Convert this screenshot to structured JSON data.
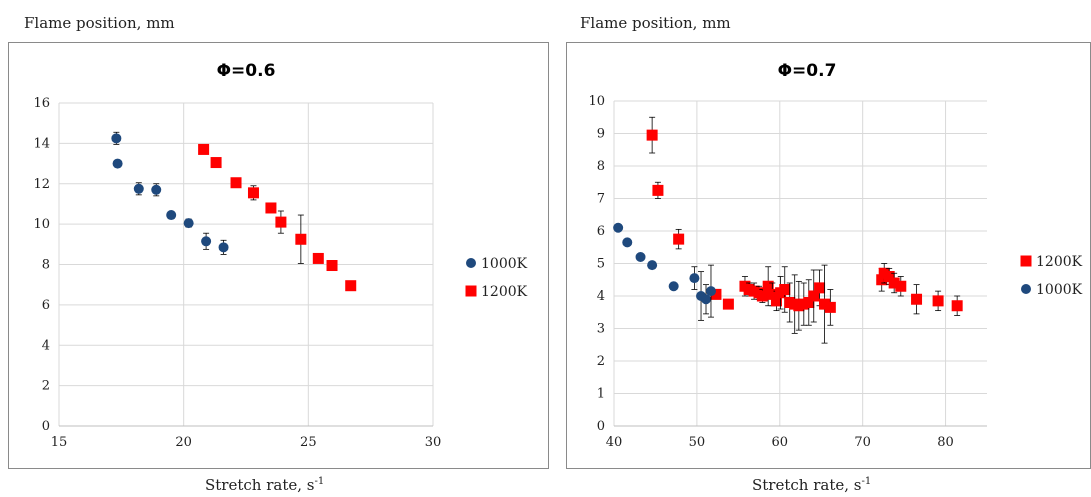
{
  "chart_data": [
    {
      "type": "scatter",
      "title": "Φ=0.6",
      "ylabel": "Flame position, mm",
      "xlabel": "Stretch rate, s",
      "xlabel_sup": "-1",
      "xlim": [
        15,
        30
      ],
      "ylim": [
        0,
        16
      ],
      "xticks": [
        15,
        20,
        25,
        30
      ],
      "yticks": [
        0,
        2,
        4,
        6,
        8,
        10,
        12,
        14,
        16
      ],
      "grid": true,
      "legend_position": "right",
      "series": [
        {
          "name": "1000K",
          "marker": "circle",
          "color": "#1f497d",
          "points": [
            {
              "x": 17.3,
              "y": 14.25,
              "err": 0.3
            },
            {
              "x": 17.35,
              "y": 13.0,
              "err": 0
            },
            {
              "x": 18.2,
              "y": 11.75,
              "err": 0.3
            },
            {
              "x": 18.9,
              "y": 11.7,
              "err": 0.3
            },
            {
              "x": 19.5,
              "y": 10.45,
              "err": 0
            },
            {
              "x": 20.2,
              "y": 10.05,
              "err": 0.2
            },
            {
              "x": 20.9,
              "y": 9.15,
              "err": 0.4
            },
            {
              "x": 21.6,
              "y": 8.85,
              "err": 0.35
            }
          ]
        },
        {
          "name": "1200K",
          "marker": "square",
          "color": "#ff0000",
          "points": [
            {
              "x": 20.8,
              "y": 13.7,
              "err": 0
            },
            {
              "x": 21.3,
              "y": 13.05,
              "err": 0
            },
            {
              "x": 22.1,
              "y": 12.05,
              "err": 0
            },
            {
              "x": 22.8,
              "y": 11.55,
              "err": 0.35
            },
            {
              "x": 23.5,
              "y": 10.8,
              "err": 0
            },
            {
              "x": 23.9,
              "y": 10.1,
              "err": 0.55
            },
            {
              "x": 24.7,
              "y": 9.25,
              "err": 1.2
            },
            {
              "x": 25.4,
              "y": 8.3,
              "err": 0
            },
            {
              "x": 25.95,
              "y": 7.95,
              "err": 0.2
            },
            {
              "x": 26.7,
              "y": 6.95,
              "err": 0
            }
          ]
        }
      ],
      "legend": [
        "1000K",
        "1200K"
      ]
    },
    {
      "type": "scatter",
      "title": "Φ=0.7",
      "ylabel": "Flame position, mm",
      "xlabel": "Stretch rate, s",
      "xlabel_sup": "-1",
      "xlim": [
        40,
        85
      ],
      "ylim": [
        0,
        10
      ],
      "xticks": [
        40,
        50,
        60,
        70,
        80
      ],
      "yticks": [
        0,
        1,
        2,
        3,
        4,
        5,
        6,
        7,
        8,
        9,
        10
      ],
      "grid": true,
      "legend_position": "right",
      "series": [
        {
          "name": "1200K",
          "marker": "square",
          "color": "#ff0000",
          "points": [
            {
              "x": 44.6,
              "y": 8.95,
              "err": 0.55
            },
            {
              "x": 45.3,
              "y": 7.25,
              "err": 0.25
            },
            {
              "x": 47.8,
              "y": 5.75,
              "err": 0.3
            },
            {
              "x": 52.3,
              "y": 4.05,
              "err": 0
            },
            {
              "x": 53.8,
              "y": 3.75,
              "err": 0
            },
            {
              "x": 55.8,
              "y": 4.3,
              "err": 0.3
            },
            {
              "x": 56.3,
              "y": 4.2,
              "err": 0.2
            },
            {
              "x": 56.9,
              "y": 4.15,
              "err": 0.25
            },
            {
              "x": 57.5,
              "y": 4.1,
              "err": 0.2
            },
            {
              "x": 57.9,
              "y": 4.0,
              "err": 0.2
            },
            {
              "x": 58.6,
              "y": 4.3,
              "err": 0.6
            },
            {
              "x": 59.1,
              "y": 4.05,
              "err": 0.35
            },
            {
              "x": 59.6,
              "y": 3.85,
              "err": 0.3
            },
            {
              "x": 60.1,
              "y": 4.1,
              "err": 0.5
            },
            {
              "x": 60.6,
              "y": 4.2,
              "err": 0.7
            },
            {
              "x": 61.2,
              "y": 3.8,
              "err": 0.6
            },
            {
              "x": 61.8,
              "y": 3.75,
              "err": 0.9
            },
            {
              "x": 62.3,
              "y": 3.7,
              "err": 0.75
            },
            {
              "x": 62.9,
              "y": 3.75,
              "err": 0.65
            },
            {
              "x": 63.5,
              "y": 3.8,
              "err": 0.7
            },
            {
              "x": 64.1,
              "y": 4.0,
              "err": 0.8
            },
            {
              "x": 64.8,
              "y": 4.25,
              "err": 0.55
            },
            {
              "x": 65.4,
              "y": 3.75,
              "err": 1.2
            },
            {
              "x": 66.1,
              "y": 3.65,
              "err": 0.55
            },
            {
              "x": 72.3,
              "y": 4.5,
              "err": 0.35
            },
            {
              "x": 72.6,
              "y": 4.7,
              "err": 0.3
            },
            {
              "x": 73.2,
              "y": 4.6,
              "err": 0.25
            },
            {
              "x": 73.8,
              "y": 4.4,
              "err": 0.3
            },
            {
              "x": 74.6,
              "y": 4.3,
              "err": 0.3
            },
            {
              "x": 76.5,
              "y": 3.9,
              "err": 0.45
            },
            {
              "x": 79.1,
              "y": 3.85,
              "err": 0.3
            },
            {
              "x": 81.4,
              "y": 3.7,
              "err": 0.3
            }
          ]
        },
        {
          "name": "1000K",
          "marker": "circle",
          "color": "#1f497d",
          "points": [
            {
              "x": 40.5,
              "y": 6.1,
              "err": 0
            },
            {
              "x": 41.6,
              "y": 5.65,
              "err": 0
            },
            {
              "x": 43.2,
              "y": 5.2,
              "err": 0
            },
            {
              "x": 44.6,
              "y": 4.95,
              "err": 0
            },
            {
              "x": 47.2,
              "y": 4.3,
              "err": 0
            },
            {
              "x": 49.7,
              "y": 4.55,
              "err": 0.35
            },
            {
              "x": 50.5,
              "y": 4.0,
              "err": 0.75
            },
            {
              "x": 51.1,
              "y": 3.9,
              "err": 0.45
            },
            {
              "x": 51.7,
              "y": 4.15,
              "err": 0.8
            }
          ]
        }
      ],
      "legend": [
        "1200K",
        "1000K"
      ]
    }
  ]
}
